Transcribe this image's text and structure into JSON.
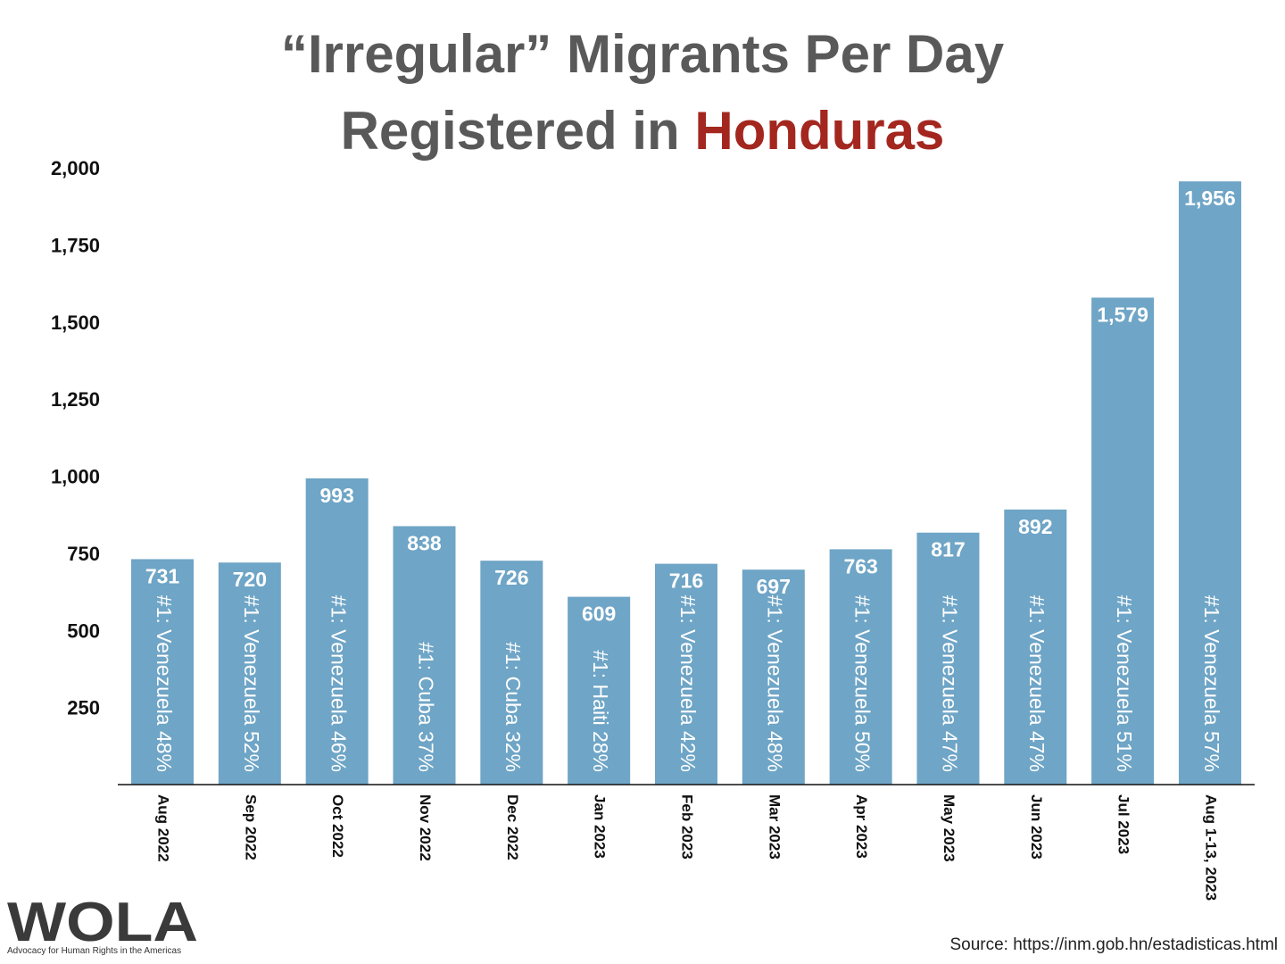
{
  "title": {
    "line1": "“Irregular” Migrants Per Day",
    "line2_prefix": "Registered in ",
    "line2_highlight": "Honduras"
  },
  "colors": {
    "bar": "#6fa5c6",
    "title": "#595959",
    "highlight": "#a3271f",
    "axis": "#111111"
  },
  "chart_data": {
    "type": "bar",
    "title": "“Irregular” Migrants Per Day Registered in Honduras",
    "xlabel": "",
    "ylabel": "",
    "categories": [
      "Aug 2022",
      "Sep 2022",
      "Oct 2022",
      "Nov 2022",
      "Dec 2022",
      "Jan 2023",
      "Feb 2023",
      "Mar 2023",
      "Apr 2023",
      "May 2023",
      "Jun 2023",
      "Jul 2023",
      "Aug 1-13, 2023"
    ],
    "values": [
      731,
      720,
      993,
      838,
      726,
      609,
      716,
      697,
      763,
      817,
      892,
      1579,
      1956
    ],
    "value_labels": [
      "731",
      "720",
      "993",
      "838",
      "726",
      "609",
      "716",
      "697",
      "763",
      "817",
      "892",
      "1,579",
      "1,956"
    ],
    "bar_annotations": [
      "#1: Venezuela 48%",
      "#1: Venezuela 52%",
      "#1: Venezuela 46%",
      "#1: Cuba 37%",
      "#1: Cuba 32%",
      "#1: Haiti 28%",
      "#1: Venezuela 42%",
      "#1: Venezuela 48%",
      "#1: Venezuela 50%",
      "#1: Venezuela 47%",
      "#1: Venezuela 47%",
      "#1: Venezuela 51%",
      "#1: Venezuela 57%"
    ],
    "ylim": [
      0,
      2000
    ],
    "yticks": [
      250,
      500,
      750,
      1000,
      1250,
      1500,
      1750,
      2000
    ],
    "ytick_labels": [
      "250",
      "500",
      "750",
      "1,000",
      "1,250",
      "1,500",
      "1,750",
      "2,000"
    ],
    "grid": false,
    "legend": "none"
  },
  "logo": {
    "text": "WOLA",
    "tagline": "Advocacy for Human Rights in the Americas"
  },
  "source": "Source: https://inm.gob.hn/estadisticas.html"
}
